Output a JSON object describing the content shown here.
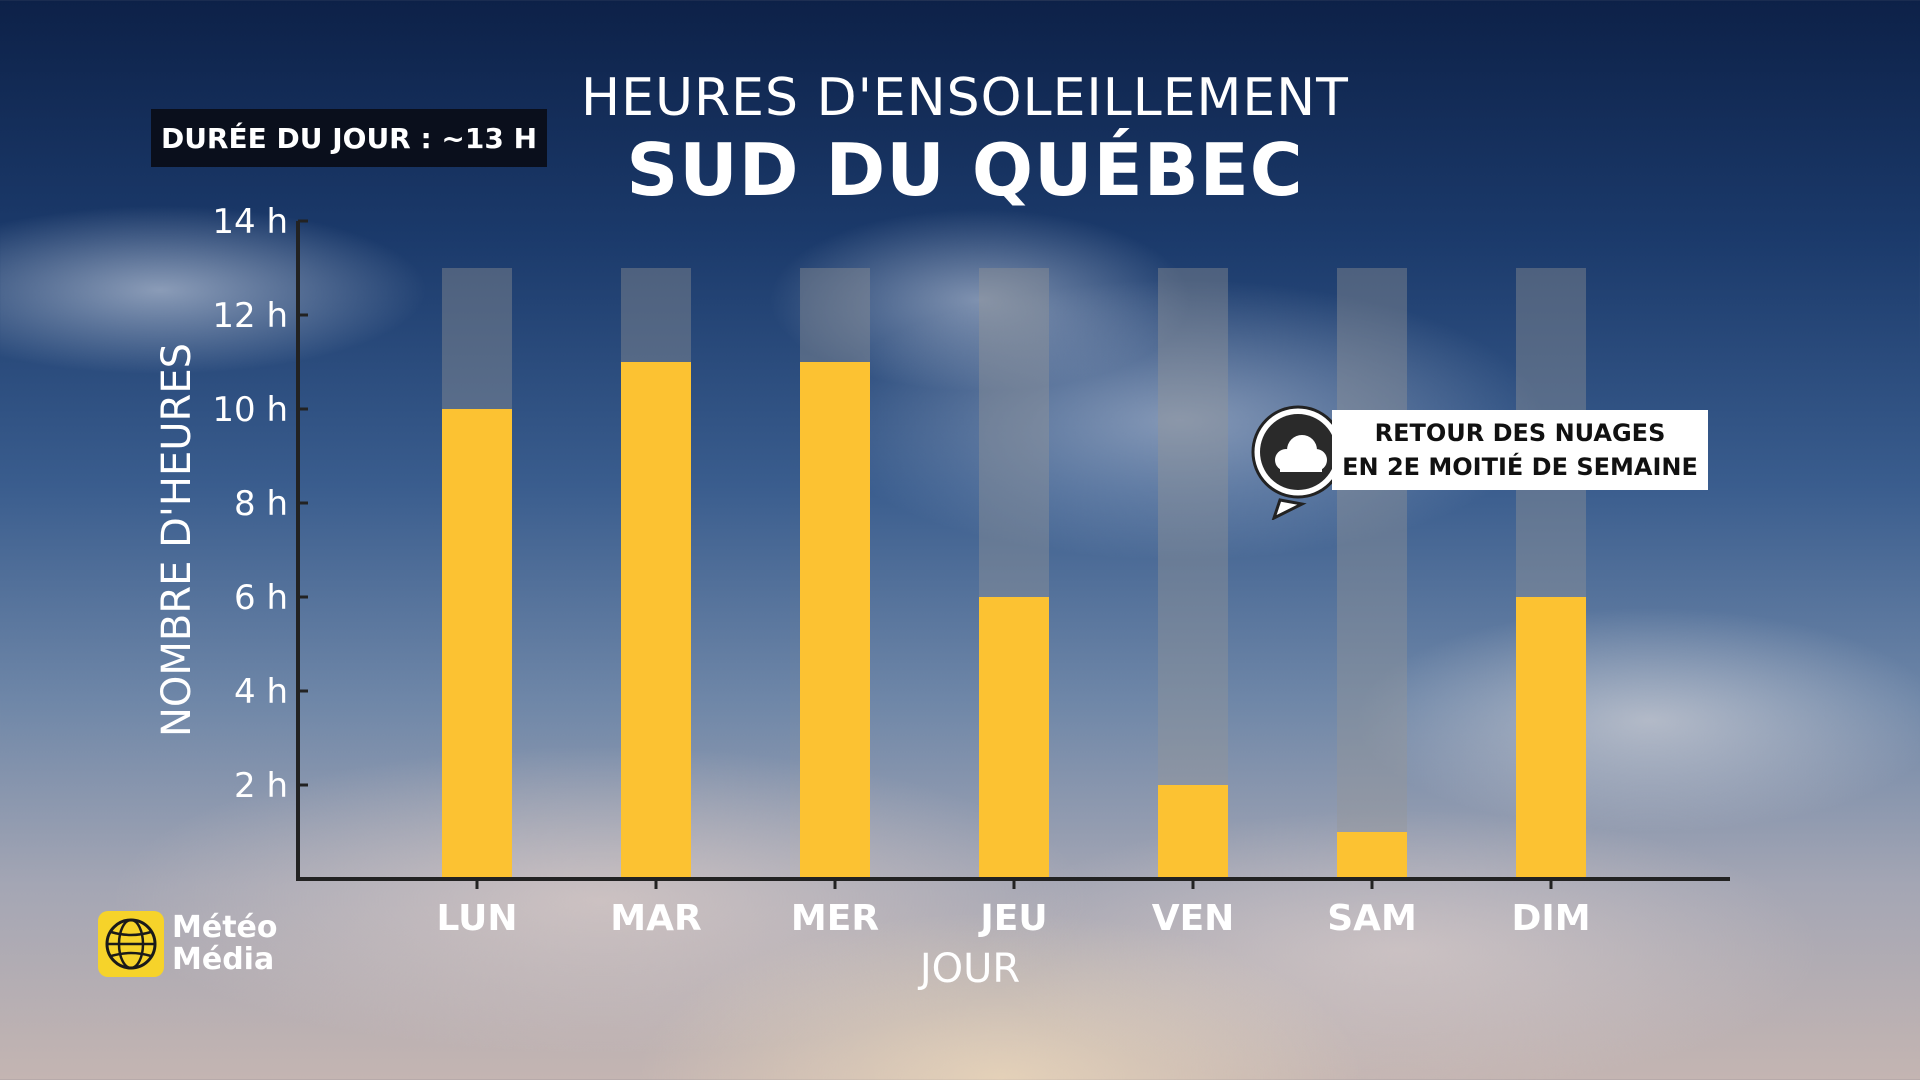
{
  "header": {
    "day_length": "DURÉE DU JOUR : ~13 H",
    "title_line1": "HEURES D'ENSOLEILLEMENT",
    "title_line2": "SUD DU QUÉBEC"
  },
  "callout": {
    "line1": "RETOUR DES NUAGES",
    "line2": "EN 2E MOITIÉ DE SEMAINE",
    "icon": "cloud-icon"
  },
  "logo": {
    "line1": "Météo",
    "line2": "Média"
  },
  "colors": {
    "bar": "#fcc232",
    "daylight_bar": "rgba(150,150,150,0.40)",
    "axis": "#222222"
  },
  "chart_data": {
    "type": "bar",
    "categories": [
      "LUN",
      "MAR",
      "MER",
      "JEU",
      "VEN",
      "SAM",
      "DIM"
    ],
    "series": [
      {
        "values": [
          10,
          11,
          11,
          6,
          2,
          1,
          6
        ]
      }
    ],
    "daylight_hours": 13,
    "xlabel": "JOUR",
    "ylabel": "NOMBRE D'HEURES",
    "ylim": [
      0,
      14
    ],
    "yticks": [
      {
        "value": 2,
        "label": "2 h"
      },
      {
        "value": 4,
        "label": "4 h"
      },
      {
        "value": 6,
        "label": "6 h"
      },
      {
        "value": 8,
        "label": "8 h"
      },
      {
        "value": 10,
        "label": "10 h"
      },
      {
        "value": 12,
        "label": "12 h"
      },
      {
        "value": 14,
        "label": "14 h"
      }
    ],
    "grid": false,
    "legend": "none"
  }
}
